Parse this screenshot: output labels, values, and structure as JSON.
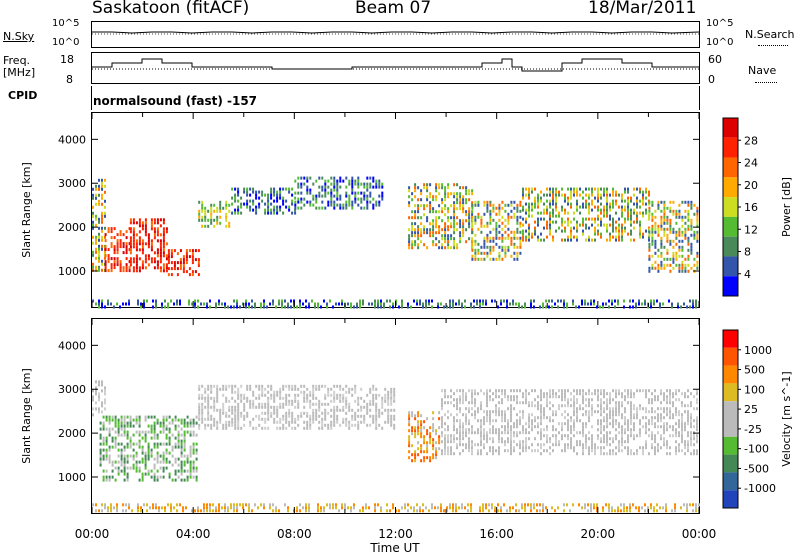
{
  "header": {
    "radar": "Saskatoon (fitACF)",
    "beam": "Beam 07",
    "date": "18/Mar/2011"
  },
  "panels": {
    "noise": {
      "left_label": "N.Sky",
      "right_label": "N.Search",
      "left_ticks": [
        "10^5",
        "10^0"
      ],
      "right_ticks": [
        "10^5",
        "10^0"
      ]
    },
    "freq": {
      "left_label_1": "Freq.",
      "left_label_2": "[MHz]",
      "right_label": "Nave",
      "left_ticks": [
        "18",
        "8"
      ],
      "right_ticks": [
        "60",
        "0"
      ]
    },
    "cpid": {
      "label": "CPID",
      "program": "normalsound (fast) -157"
    }
  },
  "colors": {
    "power_scale": [
      "#0000ff",
      "#3355aa",
      "#4a8a5a",
      "#55bb33",
      "#ccdd22",
      "#ffaa00",
      "#ff6600",
      "#ff2200",
      "#dd0000"
    ],
    "velocity_scale": [
      "#2244bb",
      "#336699",
      "#448855",
      "#55bb33",
      "#bbbbbb",
      "#bbbbbb",
      "#ddbb22",
      "#ff8800",
      "#ff5500",
      "#ff0000"
    ]
  },
  "chart_data": [
    {
      "type": "heatmap",
      "title": "Power",
      "xlabel": "Time UT",
      "ylabel": "Slant Range [km]",
      "x_ticks": [
        "00:00",
        "04:00",
        "08:00",
        "12:00",
        "16:00",
        "20:00",
        "00:00"
      ],
      "xlim": [
        0,
        24
      ],
      "ylim": [
        180,
        4600
      ],
      "y_ticks": [
        1000,
        2000,
        3000,
        4000
      ],
      "colorbar_label": "Power [dB]",
      "colorbar_ticks": [
        4,
        8,
        12,
        16,
        20,
        24,
        28
      ],
      "colorbar_range": [
        0,
        30
      ],
      "regions": [
        {
          "x": [
            0.0,
            0.5
          ],
          "y": [
            1000,
            3100
          ],
          "level": "mixed"
        },
        {
          "x": [
            0.5,
            1.5
          ],
          "y": [
            1000,
            2000
          ],
          "level": "high"
        },
        {
          "x": [
            1.5,
            3.0
          ],
          "y": [
            1000,
            2200
          ],
          "level": "high"
        },
        {
          "x": [
            3.0,
            4.2
          ],
          "y": [
            950,
            1500
          ],
          "level": "high"
        },
        {
          "x": [
            4.2,
            5.5
          ],
          "y": [
            2000,
            2600
          ],
          "level": "mid"
        },
        {
          "x": [
            5.5,
            8.0
          ],
          "y": [
            2300,
            2900
          ],
          "level": "low"
        },
        {
          "x": [
            8.0,
            11.5
          ],
          "y": [
            2400,
            3150
          ],
          "level": "low"
        },
        {
          "x": [
            12.5,
            15.0
          ],
          "y": [
            1500,
            3000
          ],
          "level": "mixed"
        },
        {
          "x": [
            15.0,
            17.0
          ],
          "y": [
            1300,
            2600
          ],
          "level": "mixed"
        },
        {
          "x": [
            17.0,
            22.0
          ],
          "y": [
            1700,
            2900
          ],
          "level": "mixed"
        },
        {
          "x": [
            22.0,
            24.0
          ],
          "y": [
            1000,
            2600
          ],
          "level": "mixed"
        },
        {
          "x": [
            0.0,
            24.0
          ],
          "y": [
            200,
            350
          ],
          "level": "low"
        }
      ]
    },
    {
      "type": "heatmap",
      "title": "Velocity",
      "xlabel": "Time UT",
      "ylabel": "Slant Range [km]",
      "x_ticks": [
        "00:00",
        "04:00",
        "08:00",
        "12:00",
        "16:00",
        "20:00",
        "00:00"
      ],
      "xlim": [
        0,
        24
      ],
      "ylim": [
        180,
        4600
      ],
      "y_ticks": [
        1000,
        2000,
        3000,
        4000
      ],
      "colorbar_label": "Velocity [m s^-1]",
      "colorbar_ticks": [
        1000,
        500,
        100,
        25,
        -25,
        -100,
        -500,
        -1000
      ],
      "regions": [
        {
          "x": [
            0.0,
            0.5
          ],
          "y": [
            2400,
            3200
          ],
          "level": "gray"
        },
        {
          "x": [
            0.3,
            4.2
          ],
          "y": [
            950,
            2400
          ],
          "level": "green"
        },
        {
          "x": [
            4.2,
            12.0
          ],
          "y": [
            2100,
            3100
          ],
          "level": "gray"
        },
        {
          "x": [
            12.5,
            13.8
          ],
          "y": [
            1400,
            2500
          ],
          "level": "orange"
        },
        {
          "x": [
            13.8,
            24.0
          ],
          "y": [
            1500,
            3000
          ],
          "level": "gray"
        },
        {
          "x": [
            0.0,
            24.0
          ],
          "y": [
            200,
            400
          ],
          "level": "yellow"
        }
      ]
    }
  ]
}
